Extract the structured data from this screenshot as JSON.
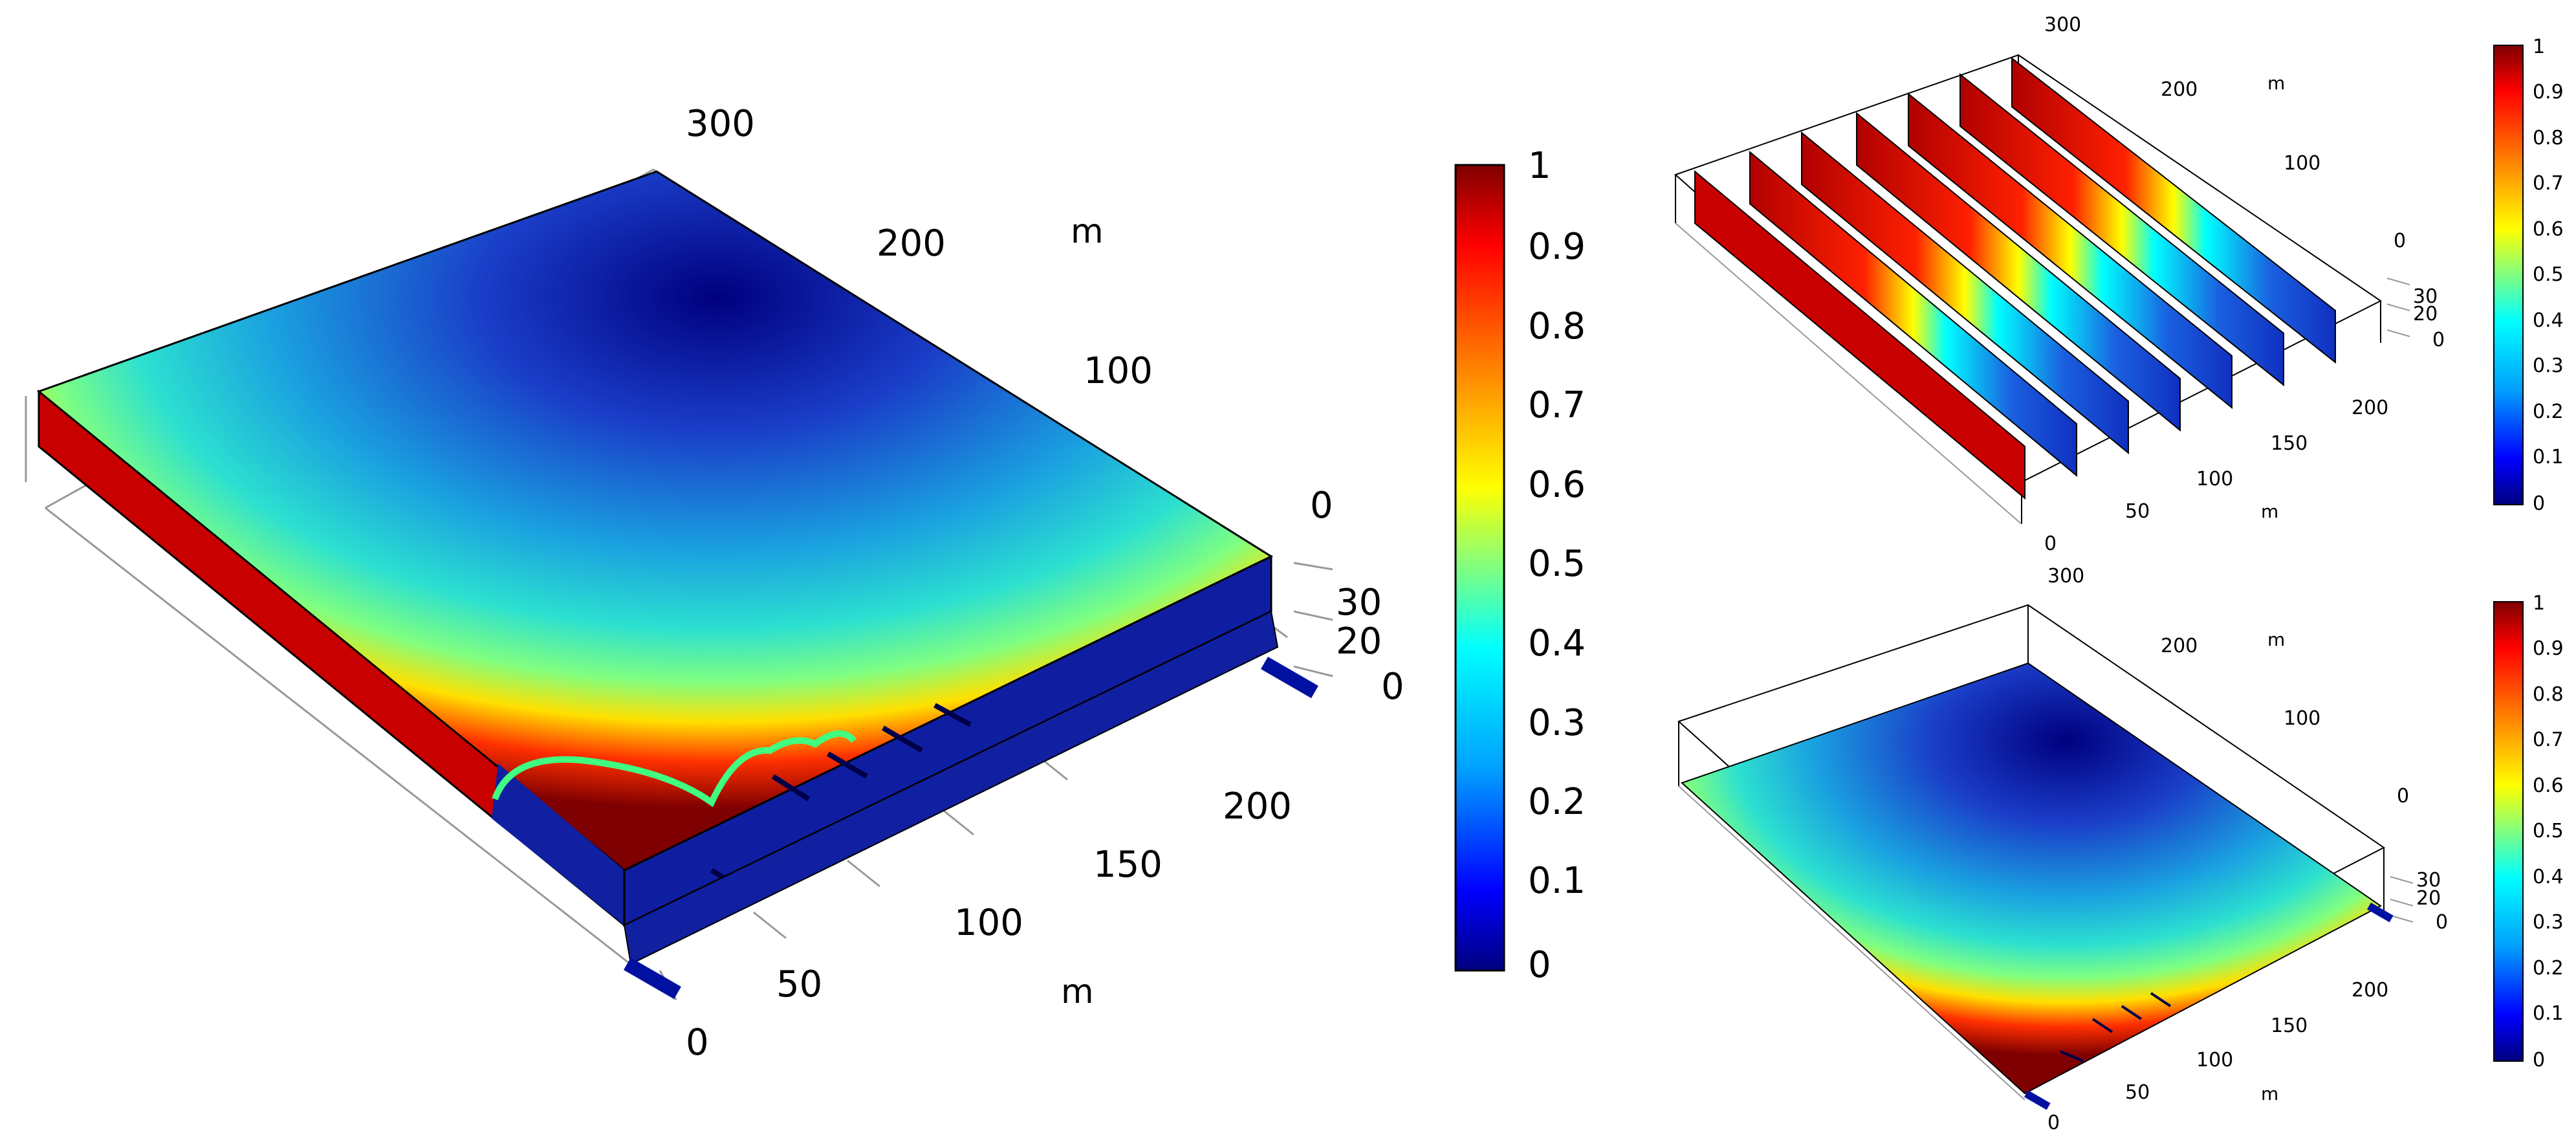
{
  "colormap": {
    "name": "rainbow",
    "stops": [
      "#00007f",
      "#0000ff",
      "#00a0ff",
      "#00ffff",
      "#80ff80",
      "#ffff00",
      "#ff8000",
      "#ff0000",
      "#7f0000"
    ]
  },
  "panels": [
    {
      "id": "main",
      "axes": {
        "y_ticks": [
          "300",
          "200",
          "100",
          "0"
        ],
        "x_ticks": [
          "0",
          "50",
          "100",
          "150",
          "200"
        ],
        "z_ticks": [
          "30",
          "20",
          "0"
        ],
        "unit_y": "m",
        "unit_x": "m"
      },
      "colorbar": {
        "ticks": [
          "1",
          "0.9",
          "0.8",
          "0.7",
          "0.6",
          "0.5",
          "0.4",
          "0.3",
          "0.2",
          "0.1",
          "0"
        ]
      }
    },
    {
      "id": "top-right",
      "axes": {
        "y_ticks": [
          "300",
          "200",
          "100",
          "0"
        ],
        "x_ticks": [
          "0",
          "50",
          "100",
          "150",
          "200"
        ],
        "z_ticks": [
          "30",
          "20",
          "0"
        ],
        "unit_y": "m",
        "unit_x": "m"
      },
      "colorbar": {
        "ticks": [
          "1",
          "0.9",
          "0.8",
          "0.7",
          "0.6",
          "0.5",
          "0.4",
          "0.3",
          "0.2",
          "0.1",
          "0"
        ]
      }
    },
    {
      "id": "bottom-right",
      "axes": {
        "y_ticks": [
          "300",
          "200",
          "100",
          "0"
        ],
        "x_ticks": [
          "0",
          "50",
          "100",
          "150",
          "200"
        ],
        "z_ticks": [
          "30",
          "20",
          "0"
        ],
        "unit_y": "m",
        "unit_x": "m"
      },
      "colorbar": {
        "ticks": [
          "1",
          "0.9",
          "0.8",
          "0.7",
          "0.6",
          "0.5",
          "0.4",
          "0.3",
          "0.2",
          "0.1",
          "0"
        ]
      }
    }
  ]
}
